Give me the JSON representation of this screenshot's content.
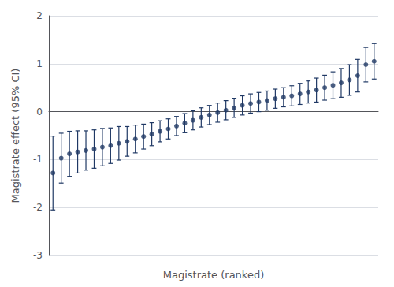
{
  "chart_data": {
    "type": "scatter",
    "xlabel": "Magistrate (ranked)",
    "ylabel": "Magistrate effect (95% CI)",
    "color": "#1f3864",
    "values": [
      -1.28,
      -0.97,
      -0.88,
      -0.84,
      -0.81,
      -0.78,
      -0.74,
      -0.71,
      -0.66,
      -0.62,
      -0.57,
      -0.52,
      -0.47,
      -0.41,
      -0.36,
      -0.3,
      -0.24,
      -0.18,
      -0.12,
      -0.07,
      -0.02,
      0.03,
      0.08,
      0.13,
      0.17,
      0.2,
      0.23,
      0.27,
      0.3,
      0.33,
      0.37,
      0.41,
      0.45,
      0.5,
      0.55,
      0.6,
      0.66,
      0.75,
      0.98,
      1.05
    ],
    "ci_lower": [
      -2.05,
      -1.49,
      -1.35,
      -1.28,
      -1.22,
      -1.18,
      -1.13,
      -1.08,
      -1.01,
      -0.93,
      -0.86,
      -0.78,
      -0.71,
      -0.63,
      -0.57,
      -0.5,
      -0.44,
      -0.38,
      -0.32,
      -0.27,
      -0.22,
      -0.17,
      -0.12,
      -0.07,
      -0.03,
      0.0,
      0.03,
      0.07,
      0.1,
      0.12,
      0.15,
      0.18,
      0.2,
      0.24,
      0.27,
      0.3,
      0.34,
      0.41,
      0.62,
      0.68
    ],
    "ci_upper": [
      -0.51,
      -0.45,
      -0.41,
      -0.4,
      -0.4,
      -0.38,
      -0.35,
      -0.34,
      -0.31,
      -0.31,
      -0.28,
      -0.26,
      -0.23,
      -0.19,
      -0.15,
      -0.1,
      -0.04,
      0.02,
      0.08,
      0.13,
      0.18,
      0.23,
      0.28,
      0.33,
      0.37,
      0.4,
      0.43,
      0.47,
      0.5,
      0.54,
      0.59,
      0.64,
      0.7,
      0.76,
      0.83,
      0.9,
      0.98,
      1.09,
      1.34,
      1.42
    ],
    "ylim": [
      -3,
      2
    ],
    "yticks": [
      -3,
      -2,
      -1,
      0,
      1,
      2
    ],
    "grid": true,
    "tick_labels": "y"
  }
}
